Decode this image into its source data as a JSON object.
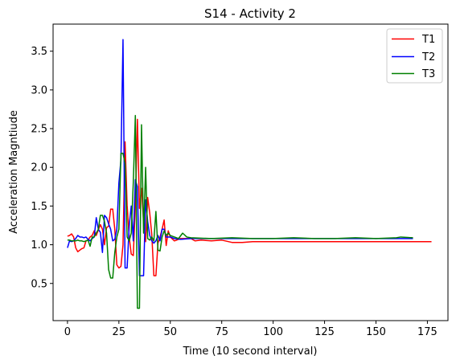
{
  "chart_data": {
    "type": "line",
    "title": "S14 - Activity 2",
    "xlabel": "Time (10 second interval)",
    "ylabel": "Acceleration Magntiude",
    "xlim": [
      -7,
      185
    ],
    "ylim": [
      0.02,
      3.85
    ],
    "xticks": [
      "0",
      "25",
      "50",
      "75",
      "100",
      "125",
      "150",
      "175"
    ],
    "yticks": [
      "0.5",
      "1.0",
      "1.5",
      "2.0",
      "2.5",
      "3.0",
      "3.5"
    ],
    "grid": false,
    "legend_position": "upper right",
    "series": [
      {
        "name": "T1",
        "color": "#ff0000",
        "points": [
          [
            0,
            1.11
          ],
          [
            1,
            1.12
          ],
          [
            2,
            1.14
          ],
          [
            3,
            1.1
          ],
          [
            4,
            0.96
          ],
          [
            5,
            0.91
          ],
          [
            6,
            0.93
          ],
          [
            7,
            0.95
          ],
          [
            8,
            0.96
          ],
          [
            9,
            1.05
          ],
          [
            10,
            1.06
          ],
          [
            11,
            1.1
          ],
          [
            12,
            1.12
          ],
          [
            13,
            1.18
          ],
          [
            14,
            1.12
          ],
          [
            15,
            1.19
          ],
          [
            16,
            1.26
          ],
          [
            17,
            1.2
          ],
          [
            18,
            1.0
          ],
          [
            19,
            1.22
          ],
          [
            20,
            1.24
          ],
          [
            21,
            1.46
          ],
          [
            22,
            1.46
          ],
          [
            23,
            1.2
          ],
          [
            24,
            0.74
          ],
          [
            25,
            0.7
          ],
          [
            26,
            0.72
          ],
          [
            27,
            1.0
          ],
          [
            28,
            2.33
          ],
          [
            29,
            1.51
          ],
          [
            30,
            1.1
          ],
          [
            31,
            0.88
          ],
          [
            32,
            0.86
          ],
          [
            33,
            1.5
          ],
          [
            34,
            2.62
          ],
          [
            35,
            1.47
          ],
          [
            36,
            1.73
          ],
          [
            37,
            1.3
          ],
          [
            38,
            1.04
          ],
          [
            39,
            1.61
          ],
          [
            40,
            1.41
          ],
          [
            41,
            1.13
          ],
          [
            42,
            0.6
          ],
          [
            43,
            0.6
          ],
          [
            44,
            1.02
          ],
          [
            45,
            1.1
          ],
          [
            46,
            1.2
          ],
          [
            47,
            1.32
          ],
          [
            48,
            0.99
          ],
          [
            49,
            1.18
          ],
          [
            50,
            1.1
          ],
          [
            52,
            1.05
          ],
          [
            55,
            1.08
          ],
          [
            58,
            1.08
          ],
          [
            60,
            1.08
          ],
          [
            62,
            1.05
          ],
          [
            65,
            1.06
          ],
          [
            70,
            1.05
          ],
          [
            75,
            1.06
          ],
          [
            80,
            1.03
          ],
          [
            85,
            1.03
          ],
          [
            90,
            1.04
          ],
          [
            100,
            1.04
          ],
          [
            110,
            1.04
          ],
          [
            120,
            1.04
          ],
          [
            130,
            1.04
          ],
          [
            140,
            1.04
          ],
          [
            150,
            1.04
          ],
          [
            160,
            1.04
          ],
          [
            170,
            1.04
          ],
          [
            177,
            1.04
          ]
        ]
      },
      {
        "name": "T2",
        "color": "#0000ff",
        "points": [
          [
            0,
            0.96
          ],
          [
            1,
            1.05
          ],
          [
            2,
            1.04
          ],
          [
            3,
            1.05
          ],
          [
            4,
            1.08
          ],
          [
            5,
            1.12
          ],
          [
            6,
            1.1
          ],
          [
            7,
            1.1
          ],
          [
            8,
            1.09
          ],
          [
            9,
            1.1
          ],
          [
            10,
            1.07
          ],
          [
            11,
            1.05
          ],
          [
            12,
            1.08
          ],
          [
            13,
            1.1
          ],
          [
            14,
            1.35
          ],
          [
            15,
            1.2
          ],
          [
            16,
            1.16
          ],
          [
            17,
            0.9
          ],
          [
            18,
            1.38
          ],
          [
            19,
            1.35
          ],
          [
            20,
            1.27
          ],
          [
            21,
            1.2
          ],
          [
            22,
            1.05
          ],
          [
            23,
            1.07
          ],
          [
            24,
            1.2
          ],
          [
            25,
            1.8
          ],
          [
            26,
            2.1
          ],
          [
            27,
            3.65
          ],
          [
            28,
            0.7
          ],
          [
            29,
            0.7
          ],
          [
            30,
            1.24
          ],
          [
            31,
            1.5
          ],
          [
            32,
            1.05
          ],
          [
            33,
            1.84
          ],
          [
            34,
            1.75
          ],
          [
            35,
            0.6
          ],
          [
            36,
            0.6
          ],
          [
            37,
            0.6
          ],
          [
            38,
            1.58
          ],
          [
            39,
            1.3
          ],
          [
            40,
            1.12
          ],
          [
            41,
            1.05
          ],
          [
            42,
            1.02
          ],
          [
            43,
            1.05
          ],
          [
            44,
            1.12
          ],
          [
            45,
            1.05
          ],
          [
            46,
            1.2
          ],
          [
            47,
            1.2
          ],
          [
            48,
            1.1
          ],
          [
            49,
            1.1
          ],
          [
            50,
            1.1
          ],
          [
            52,
            1.08
          ],
          [
            55,
            1.07
          ],
          [
            60,
            1.08
          ],
          [
            70,
            1.08
          ],
          [
            80,
            1.08
          ],
          [
            90,
            1.08
          ],
          [
            100,
            1.08
          ],
          [
            110,
            1.08
          ],
          [
            120,
            1.08
          ],
          [
            130,
            1.08
          ],
          [
            140,
            1.08
          ],
          [
            150,
            1.08
          ],
          [
            160,
            1.08
          ],
          [
            168,
            1.08
          ]
        ]
      },
      {
        "name": "T3",
        "color": "#008000",
        "points": [
          [
            0,
            1.06
          ],
          [
            1,
            1.06
          ],
          [
            2,
            1.05
          ],
          [
            3,
            1.05
          ],
          [
            4,
            1.05
          ],
          [
            5,
            1.06
          ],
          [
            6,
            1.05
          ],
          [
            7,
            1.05
          ],
          [
            8,
            1.04
          ],
          [
            9,
            1.05
          ],
          [
            10,
            1.06
          ],
          [
            11,
            0.98
          ],
          [
            12,
            1.1
          ],
          [
            13,
            1.1
          ],
          [
            14,
            1.15
          ],
          [
            15,
            1.2
          ],
          [
            16,
            1.38
          ],
          [
            17,
            1.38
          ],
          [
            18,
            1.3
          ],
          [
            19,
            1.15
          ],
          [
            20,
            0.68
          ],
          [
            21,
            0.57
          ],
          [
            22,
            0.57
          ],
          [
            23,
            0.9
          ],
          [
            24,
            1.1
          ],
          [
            25,
            1.2
          ],
          [
            26,
            2.18
          ],
          [
            27,
            2.18
          ],
          [
            28,
            2.05
          ],
          [
            29,
            1.1
          ],
          [
            30,
            1.05
          ],
          [
            31,
            1.15
          ],
          [
            32,
            1.8
          ],
          [
            33,
            2.67
          ],
          [
            34,
            0.18
          ],
          [
            35,
            0.18
          ],
          [
            36,
            2.55
          ],
          [
            37,
            1.15
          ],
          [
            38,
            2.0
          ],
          [
            39,
            1.08
          ],
          [
            40,
            1.06
          ],
          [
            41,
            1.1
          ],
          [
            42,
            1.05
          ],
          [
            43,
            1.43
          ],
          [
            44,
            0.93
          ],
          [
            45,
            0.92
          ],
          [
            46,
            1.1
          ],
          [
            47,
            1.18
          ],
          [
            48,
            1.12
          ],
          [
            49,
            1.15
          ],
          [
            50,
            1.12
          ],
          [
            52,
            1.1
          ],
          [
            54,
            1.08
          ],
          [
            56,
            1.15
          ],
          [
            58,
            1.1
          ],
          [
            60,
            1.09
          ],
          [
            70,
            1.08
          ],
          [
            80,
            1.09
          ],
          [
            90,
            1.08
          ],
          [
            100,
            1.08
          ],
          [
            110,
            1.09
          ],
          [
            120,
            1.08
          ],
          [
            130,
            1.08
          ],
          [
            140,
            1.09
          ],
          [
            150,
            1.08
          ],
          [
            160,
            1.09
          ],
          [
            162,
            1.1
          ],
          [
            168,
            1.09
          ]
        ]
      }
    ]
  }
}
